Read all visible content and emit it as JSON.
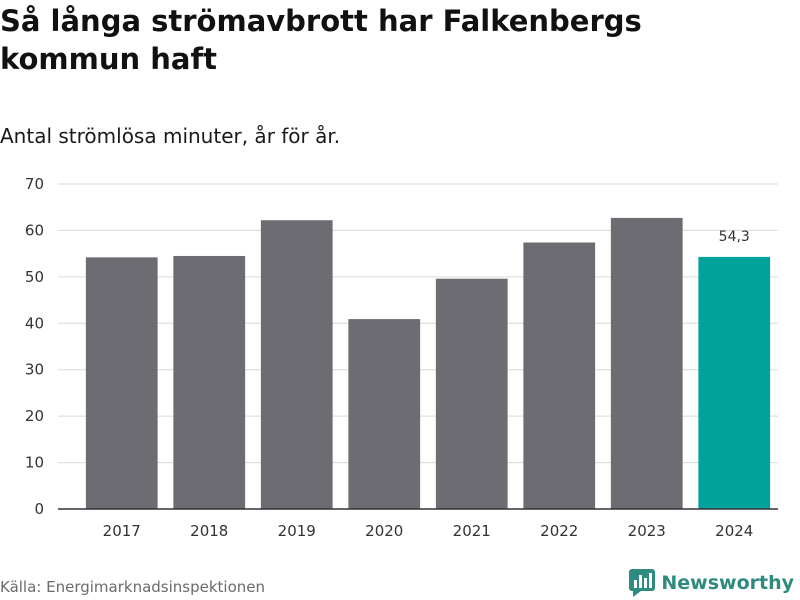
{
  "page": {
    "title": "Så långa strömavbrott har Falkenbergs kommun haft",
    "subtitle": "Antal strömlösa minuter, år för år.",
    "source": "Källa: Energimarknadsinspektionen",
    "brand": "Newsworthy"
  },
  "colors": {
    "bar": "#6d6c72",
    "highlight": "#00a29a",
    "grid": "#d9d9d9",
    "brand": "#2e8b7f"
  },
  "chart_data": {
    "type": "bar",
    "title": "Så långa strömavbrott har Falkenbergs kommun haft",
    "subtitle": "Antal strömlösa minuter, år för år.",
    "xlabel": "",
    "ylabel": "",
    "categories": [
      "2017",
      "2018",
      "2019",
      "2020",
      "2021",
      "2022",
      "2023",
      "2024"
    ],
    "values": [
      54.2,
      54.5,
      62.2,
      40.9,
      49.6,
      57.4,
      62.7,
      54.3
    ],
    "highlight_index": 7,
    "data_labels": [
      {
        "index": 7,
        "text": "54,3"
      }
    ],
    "ylim": [
      0,
      70
    ],
    "yticks": [
      0,
      10,
      20,
      30,
      40,
      50,
      60,
      70
    ],
    "grid": true
  }
}
